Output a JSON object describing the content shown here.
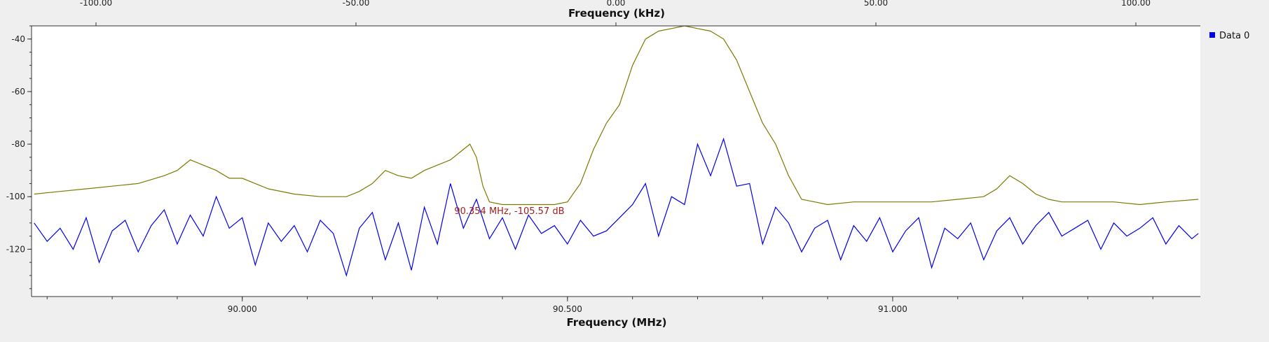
{
  "chart_data": {
    "type": "line",
    "title": "",
    "xlabel": "Frequency (MHz)",
    "x2label": "Frequency (kHz)",
    "ylabel": "",
    "xlim": [
      89.676,
      91.473
    ],
    "x2lim": [
      -112.4,
      112.4
    ],
    "ylim": [
      -138,
      -35
    ],
    "x_ticks": [
      90.0,
      90.5,
      91.0
    ],
    "x_tick_labels": [
      "90.000",
      "90.500",
      "91.000"
    ],
    "x2_ticks": [
      -100,
      -50,
      0,
      50,
      100
    ],
    "x2_tick_labels": [
      "-100.00",
      "-50.00",
      "0.00",
      "50.00",
      "100.00"
    ],
    "y_ticks": [
      -40,
      -60,
      -80,
      -100,
      -120
    ],
    "y_tick_labels": [
      "-40",
      "-60",
      "-80",
      "-100",
      "-120"
    ],
    "legend": {
      "placement": "top-right",
      "entries": [
        "Data 0"
      ]
    },
    "marker": {
      "text": "90.354 MHz, -105.57 dB",
      "x": 90.354,
      "y": -105.57,
      "color": "#a02020"
    },
    "grid": false,
    "series": [
      {
        "name": "Data 0",
        "color": "#0000ee",
        "x": [
          89.68,
          89.7,
          89.72,
          89.74,
          89.76,
          89.78,
          89.8,
          89.82,
          89.84,
          89.86,
          89.88,
          89.9,
          89.92,
          89.94,
          89.96,
          89.98,
          90.0,
          90.02,
          90.04,
          90.06,
          90.08,
          90.1,
          90.12,
          90.14,
          90.16,
          90.18,
          90.2,
          90.22,
          90.24,
          90.26,
          90.28,
          90.3,
          90.32,
          90.34,
          90.36,
          90.38,
          90.4,
          90.42,
          90.44,
          90.46,
          90.48,
          90.5,
          90.52,
          90.54,
          90.56,
          90.58,
          90.6,
          90.62,
          90.64,
          90.66,
          90.68,
          90.7,
          90.72,
          90.74,
          90.76,
          90.78,
          90.8,
          90.82,
          90.84,
          90.86,
          90.88,
          90.9,
          90.92,
          90.94,
          90.96,
          90.98,
          91.0,
          91.02,
          91.04,
          91.06,
          91.08,
          91.1,
          91.12,
          91.14,
          91.16,
          91.18,
          91.2,
          91.22,
          91.24,
          91.26,
          91.28,
          91.3,
          91.32,
          91.34,
          91.36,
          91.38,
          91.4,
          91.42,
          91.44,
          91.46,
          91.47
        ],
        "values": [
          -110,
          -117,
          -112,
          -120,
          -108,
          -125,
          -113,
          -109,
          -121,
          -111,
          -105,
          -118,
          -107,
          -115,
          -100,
          -112,
          -108,
          -126,
          -110,
          -117,
          -111,
          -121,
          -109,
          -114,
          -130,
          -112,
          -106,
          -124,
          -110,
          -128,
          -104,
          -118,
          -95,
          -112,
          -101,
          -116,
          -108,
          -120,
          -107,
          -114,
          -111,
          -118,
          -109,
          -115,
          -113,
          -108,
          -103,
          -95,
          -115,
          -100,
          -103,
          -80,
          -92,
          -78,
          -96,
          -95,
          -118,
          -104,
          -110,
          -121,
          -112,
          -109,
          -124,
          -111,
          -117,
          -108,
          -121,
          -113,
          -108,
          -127,
          -112,
          -116,
          -110,
          -124,
          -113,
          -108,
          -118,
          -111,
          -106,
          -115,
          -112,
          -109,
          -120,
          -110,
          -115,
          -112,
          -108,
          -118,
          -111,
          -116,
          -114
        ]
      },
      {
        "name": "",
        "color": "#7d7a00",
        "x": [
          89.68,
          89.72,
          89.76,
          89.8,
          89.84,
          89.88,
          89.9,
          89.92,
          89.94,
          89.96,
          89.98,
          90.0,
          90.04,
          90.08,
          90.12,
          90.16,
          90.18,
          90.2,
          90.22,
          90.24,
          90.26,
          90.28,
          90.3,
          90.32,
          90.34,
          90.35,
          90.36,
          90.37,
          90.38,
          90.4,
          90.44,
          90.48,
          90.5,
          90.52,
          90.54,
          90.56,
          90.58,
          90.6,
          90.62,
          90.64,
          90.66,
          90.68,
          90.7,
          90.72,
          90.74,
          90.76,
          90.78,
          90.8,
          90.82,
          90.84,
          90.86,
          90.88,
          90.9,
          90.94,
          90.98,
          91.02,
          91.06,
          91.1,
          91.14,
          91.16,
          91.18,
          91.2,
          91.22,
          91.24,
          91.26,
          91.3,
          91.34,
          91.38,
          91.42,
          91.47
        ],
        "values": [
          -99,
          -98,
          -97,
          -96,
          -95,
          -92,
          -90,
          -86,
          -88,
          -90,
          -93,
          -93,
          -97,
          -99,
          -100,
          -100,
          -98,
          -95,
          -90,
          -92,
          -93,
          -90,
          -88,
          -86,
          -82,
          -80,
          -85,
          -96,
          -102,
          -103,
          -103,
          -103,
          -102,
          -95,
          -82,
          -72,
          -65,
          -50,
          -40,
          -37,
          -36,
          -35,
          -36,
          -37,
          -40,
          -48,
          -60,
          -72,
          -80,
          -92,
          -101,
          -102,
          -103,
          -102,
          -102,
          -102,
          -102,
          -101,
          -100,
          -97,
          -92,
          -95,
          -99,
          -101,
          -102,
          -102,
          -102,
          -103,
          -102,
          -101
        ]
      }
    ]
  }
}
